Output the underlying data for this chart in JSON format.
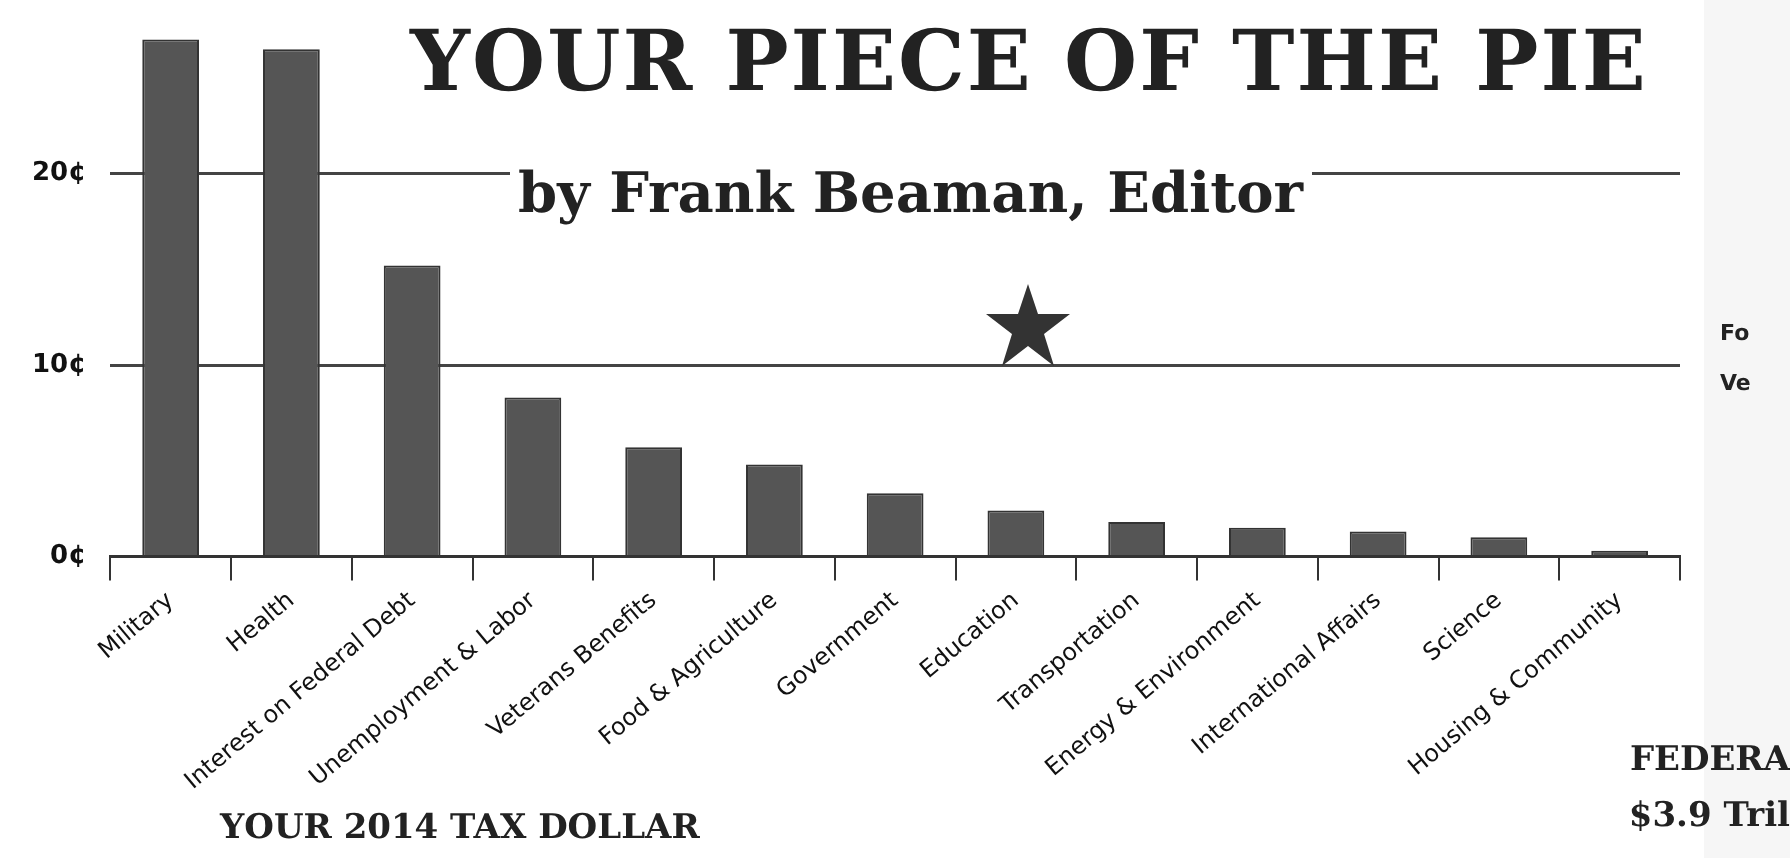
{
  "chart_data": {
    "type": "bar",
    "title": "YOUR PIECE OF THE PIE",
    "subtitle": "by Frank Beaman, Editor",
    "categories": [
      "Military",
      "Health",
      "Interest on Federal Debt",
      "Unemployment & Labor",
      "Veterans Benefits",
      "Food & Agriculture",
      "Government",
      "Education",
      "Transportation",
      "Energy & Environment",
      "International Affairs",
      "Science",
      "Housing & Community"
    ],
    "values": [
      27.0,
      26.5,
      15.2,
      8.3,
      5.7,
      4.8,
      3.3,
      2.4,
      1.8,
      1.5,
      1.3,
      1.0,
      0.3
    ],
    "color": "#555555",
    "ylim": [
      0,
      27
    ],
    "yticks": [
      {
        "value": 0,
        "label": "0¢"
      },
      {
        "value": 10,
        "label": "10¢"
      },
      {
        "value": 20,
        "label": "20¢"
      }
    ],
    "grid": "y",
    "legend": false,
    "annotations": [
      "YOUR 2014 TAX DOLLAR",
      "Fo",
      "Ve",
      "FEDERA",
      "$3.9 Tril"
    ]
  }
}
